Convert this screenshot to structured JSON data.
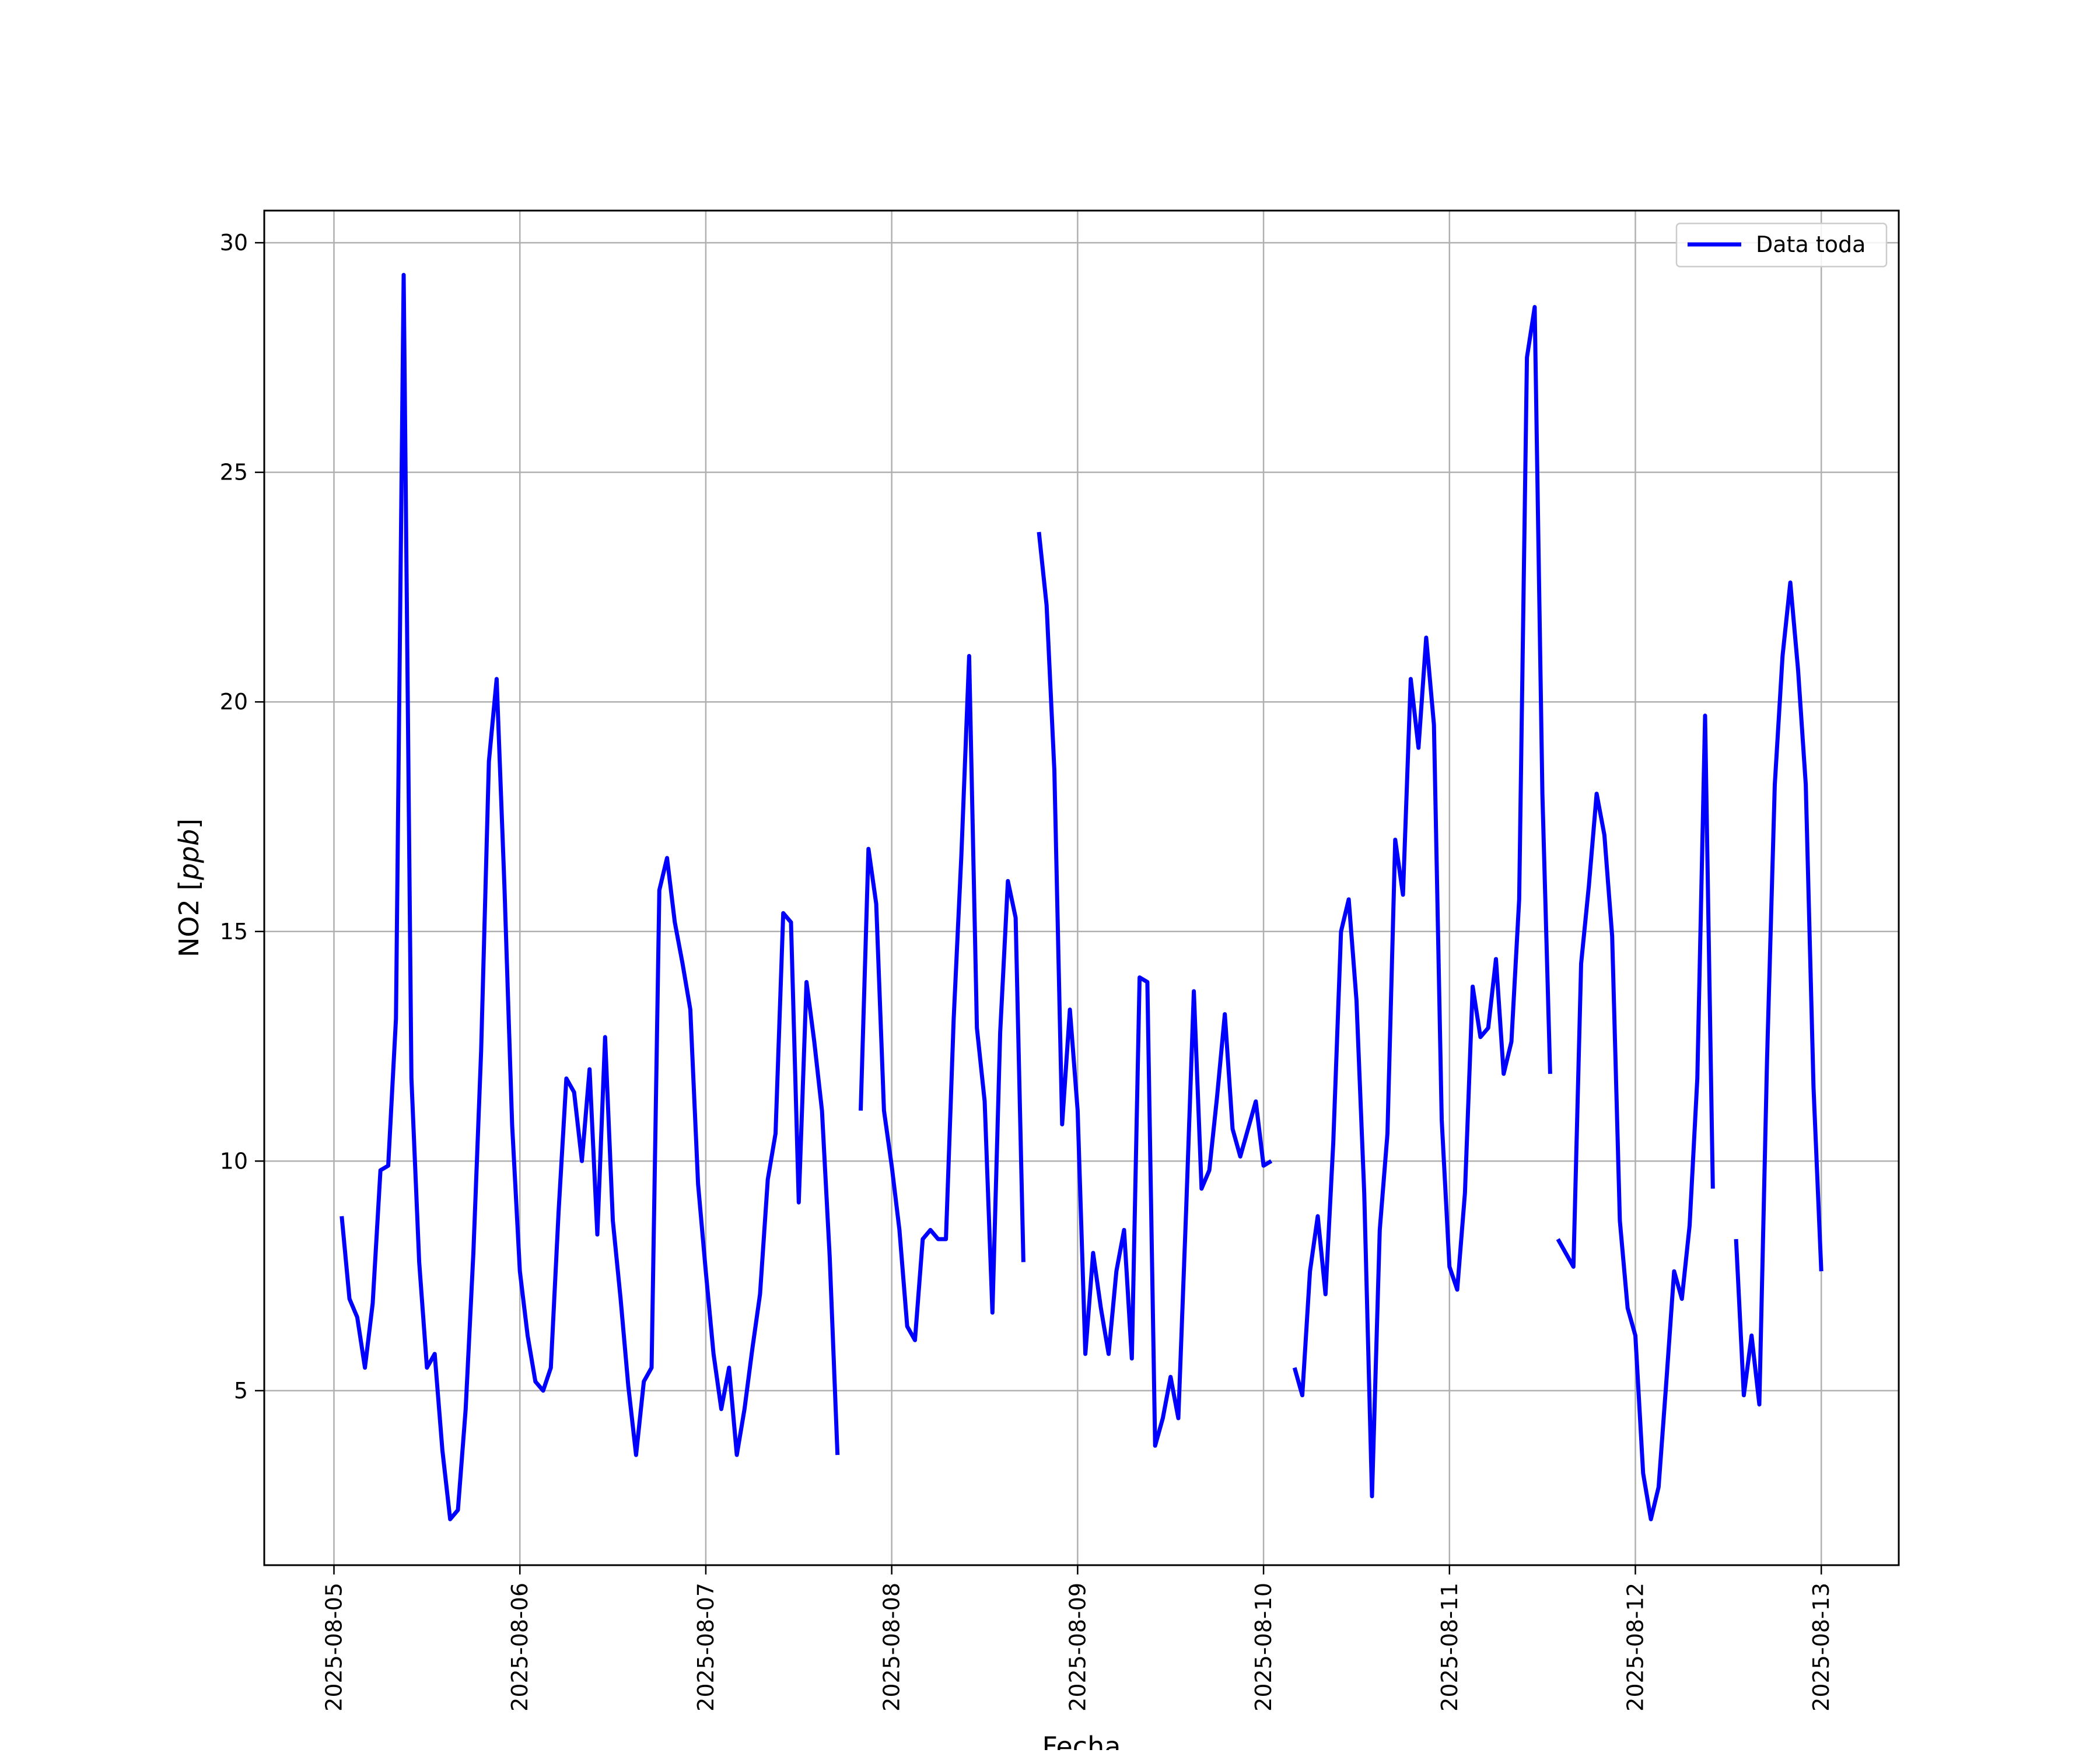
{
  "chart_data": {
    "type": "line",
    "xlabel": "Fecha",
    "ylabel_prefix": "NO2 [",
    "ylabel_unit": "ppb",
    "ylabel_suffix": "]",
    "grid": true,
    "legend_position": "top-right",
    "xlim": [
      "2025-08-04T15:00",
      "2025-08-13T10:00"
    ],
    "ylim": [
      1.2,
      30.7
    ],
    "xticks": [
      "2025-08-05",
      "2025-08-06",
      "2025-08-07",
      "2025-08-08",
      "2025-08-09",
      "2025-08-10",
      "2025-08-11",
      "2025-08-12",
      "2025-08-13"
    ],
    "yticks": [
      5,
      10,
      15,
      20,
      25,
      30
    ],
    "colors": {
      "series": "#0000ff",
      "grid": "#b0b0b0"
    },
    "series": [
      {
        "name": "Data toda",
        "segments": [
          {
            "x": [
              "2025-08-05T01:00",
              "2025-08-05T02:00",
              "2025-08-05T03:00",
              "2025-08-05T04:00",
              "2025-08-05T05:00",
              "2025-08-05T06:00",
              "2025-08-05T07:00",
              "2025-08-05T08:00",
              "2025-08-05T09:00",
              "2025-08-05T10:00",
              "2025-08-05T11:00",
              "2025-08-05T12:00",
              "2025-08-05T13:00",
              "2025-08-05T14:00",
              "2025-08-05T15:00",
              "2025-08-05T16:00",
              "2025-08-05T17:00",
              "2025-08-05T18:00",
              "2025-08-05T19:00",
              "2025-08-05T20:00",
              "2025-08-05T21:00",
              "2025-08-05T22:00",
              "2025-08-05T23:00",
              "2025-08-06T00:00",
              "2025-08-06T01:00",
              "2025-08-06T02:00",
              "2025-08-06T03:00",
              "2025-08-06T04:00",
              "2025-08-06T05:00",
              "2025-08-06T06:00",
              "2025-08-06T07:00",
              "2025-08-06T08:00",
              "2025-08-06T09:00",
              "2025-08-06T10:00",
              "2025-08-06T11:00",
              "2025-08-06T12:00",
              "2025-08-06T13:00",
              "2025-08-06T14:00",
              "2025-08-06T15:00",
              "2025-08-06T16:00",
              "2025-08-06T17:00",
              "2025-08-06T18:00",
              "2025-08-06T19:00",
              "2025-08-06T20:00",
              "2025-08-06T21:00",
              "2025-08-06T22:00",
              "2025-08-06T23:00",
              "2025-08-07T00:00",
              "2025-08-07T01:00",
              "2025-08-07T02:00",
              "2025-08-07T03:00",
              "2025-08-07T04:00",
              "2025-08-07T05:00",
              "2025-08-07T06:00",
              "2025-08-07T07:00",
              "2025-08-07T08:00",
              "2025-08-07T09:00",
              "2025-08-07T10:00",
              "2025-08-07T11:00",
              "2025-08-07T12:00",
              "2025-08-07T13:00",
              "2025-08-07T14:00",
              "2025-08-07T15:00",
              "2025-08-07T16:00",
              "2025-08-07T17:00"
            ],
            "y": [
              8.8,
              7.0,
              6.6,
              5.5,
              6.9,
              9.8,
              9.9,
              13.1,
              29.3,
              11.8,
              7.8,
              5.5,
              5.8,
              3.7,
              2.2,
              2.4,
              4.6,
              8.0,
              12.4,
              18.7,
              20.5,
              16.0,
              10.8,
              7.6,
              6.2,
              5.2,
              5.0,
              5.5,
              8.9,
              11.8,
              11.5,
              10.0,
              12.0,
              8.4,
              12.7,
              8.7,
              7.0,
              5.1,
              3.6,
              5.2,
              5.5,
              15.9,
              16.6,
              15.2,
              14.3,
              13.3,
              9.5,
              7.6,
              5.8,
              4.6,
              5.5,
              3.6,
              4.6,
              5.9,
              7.1,
              9.6,
              10.6,
              15.4,
              15.2,
              9.1,
              13.9,
              12.6,
              11.1,
              7.9,
              3.6
            ]
          },
          {
            "x": [
              "2025-08-07T20:00",
              "2025-08-07T21:00",
              "2025-08-07T22:00",
              "2025-08-07T23:00",
              "2025-08-08T00:00",
              "2025-08-08T01:00",
              "2025-08-08T02:00",
              "2025-08-08T03:00",
              "2025-08-08T04:00",
              "2025-08-08T05:00",
              "2025-08-08T06:00",
              "2025-08-08T07:00",
              "2025-08-08T08:00",
              "2025-08-08T09:00",
              "2025-08-08T10:00",
              "2025-08-08T11:00",
              "2025-08-08T12:00",
              "2025-08-08T13:00",
              "2025-08-08T14:00",
              "2025-08-08T15:00",
              "2025-08-08T16:00",
              "2025-08-08T17:00"
            ],
            "y": [
              11.1,
              16.8,
              15.6,
              11.1,
              9.9,
              8.5,
              6.4,
              6.1,
              8.3,
              8.5,
              8.3,
              8.3,
              13.1,
              16.7,
              21.0,
              12.9,
              11.3,
              6.7,
              12.8,
              16.1,
              15.3,
              7.8
            ]
          },
          {
            "x": [
              "2025-08-08T19:00",
              "2025-08-08T20:00",
              "2025-08-08T21:00",
              "2025-08-08T22:00",
              "2025-08-08T23:00",
              "2025-08-09T00:00",
              "2025-08-09T01:00",
              "2025-08-09T02:00",
              "2025-08-09T03:00",
              "2025-08-09T04:00",
              "2025-08-09T05:00",
              "2025-08-09T06:00",
              "2025-08-09T07:00",
              "2025-08-09T08:00",
              "2025-08-09T09:00",
              "2025-08-09T10:00",
              "2025-08-09T11:00",
              "2025-08-09T12:00",
              "2025-08-09T13:00",
              "2025-08-09T14:00",
              "2025-08-09T15:00",
              "2025-08-09T16:00",
              "2025-08-09T17:00",
              "2025-08-09T18:00",
              "2025-08-09T19:00",
              "2025-08-09T20:00",
              "2025-08-09T21:00",
              "2025-08-09T22:00",
              "2025-08-09T23:00",
              "2025-08-10T00:00",
              "2025-08-10T01:00"
            ],
            "y": [
              23.7,
              22.1,
              18.5,
              10.8,
              13.3,
              11.1,
              5.8,
              8.0,
              6.8,
              5.8,
              7.6,
              8.5,
              5.7,
              14.0,
              13.9,
              3.8,
              4.4,
              5.3,
              4.4,
              8.9,
              13.7,
              9.4,
              9.8,
              11.4,
              13.2,
              10.7,
              10.1,
              10.7,
              11.3,
              9.9,
              10.0
            ]
          },
          {
            "x": [
              "2025-08-10T04:00",
              "2025-08-10T05:00",
              "2025-08-10T06:00",
              "2025-08-10T07:00",
              "2025-08-10T08:00",
              "2025-08-10T09:00",
              "2025-08-10T10:00",
              "2025-08-10T11:00",
              "2025-08-10T12:00",
              "2025-08-10T13:00",
              "2025-08-10T14:00",
              "2025-08-10T15:00",
              "2025-08-10T16:00",
              "2025-08-10T17:00",
              "2025-08-10T18:00",
              "2025-08-10T19:00",
              "2025-08-10T20:00",
              "2025-08-10T21:00",
              "2025-08-10T22:00",
              "2025-08-10T23:00",
              "2025-08-11T00:00",
              "2025-08-11T01:00",
              "2025-08-11T02:00",
              "2025-08-11T03:00",
              "2025-08-11T04:00",
              "2025-08-11T05:00",
              "2025-08-11T06:00",
              "2025-08-11T07:00",
              "2025-08-11T08:00",
              "2025-08-11T09:00",
              "2025-08-11T10:00",
              "2025-08-11T11:00",
              "2025-08-11T12:00",
              "2025-08-11T13:00"
            ],
            "y": [
              5.5,
              4.9,
              7.6,
              8.8,
              7.1,
              10.4,
              15.0,
              15.7,
              13.5,
              9.3,
              2.7,
              8.5,
              10.6,
              17.0,
              15.8,
              20.5,
              19.0,
              21.4,
              19.5,
              10.9,
              7.7,
              7.2,
              9.3,
              13.8,
              12.7,
              12.9,
              14.4,
              11.9,
              12.6,
              15.7,
              27.5,
              28.6,
              18.0,
              11.9
            ]
          },
          {
            "x": [
              "2025-08-11T14:00",
              "2025-08-11T16:00",
              "2025-08-11T17:00",
              "2025-08-11T18:00",
              "2025-08-11T19:00",
              "2025-08-11T20:00",
              "2025-08-11T21:00",
              "2025-08-11T22:00",
              "2025-08-11T23:00",
              "2025-08-12T00:00",
              "2025-08-12T01:00",
              "2025-08-12T02:00",
              "2025-08-12T03:00",
              "2025-08-12T04:00",
              "2025-08-12T05:00",
              "2025-08-12T06:00",
              "2025-08-12T07:00",
              "2025-08-12T08:00",
              "2025-08-12T09:00",
              "2025-08-12T10:00"
            ],
            "y": [
              8.3,
              7.7,
              14.3,
              16.0,
              18.0,
              17.1,
              14.9,
              8.7,
              6.8,
              6.2,
              3.2,
              2.2,
              2.9,
              5.2,
              7.6,
              7.0,
              8.6,
              11.8,
              19.7,
              9.4
            ]
          },
          {
            "x": [
              "2025-08-12T13:00",
              "2025-08-12T14:00",
              "2025-08-12T15:00",
              "2025-08-12T16:00",
              "2025-08-12T17:00",
              "2025-08-12T18:00",
              "2025-08-12T19:00",
              "2025-08-12T20:00",
              "2025-08-12T21:00",
              "2025-08-12T22:00",
              "2025-08-12T23:00",
              "2025-08-13T00:00"
            ],
            "y": [
              8.3,
              4.9,
              6.2,
              4.7,
              12.2,
              18.2,
              21.0,
              22.6,
              20.7,
              18.2,
              11.6,
              7.6
            ]
          }
        ]
      }
    ]
  }
}
